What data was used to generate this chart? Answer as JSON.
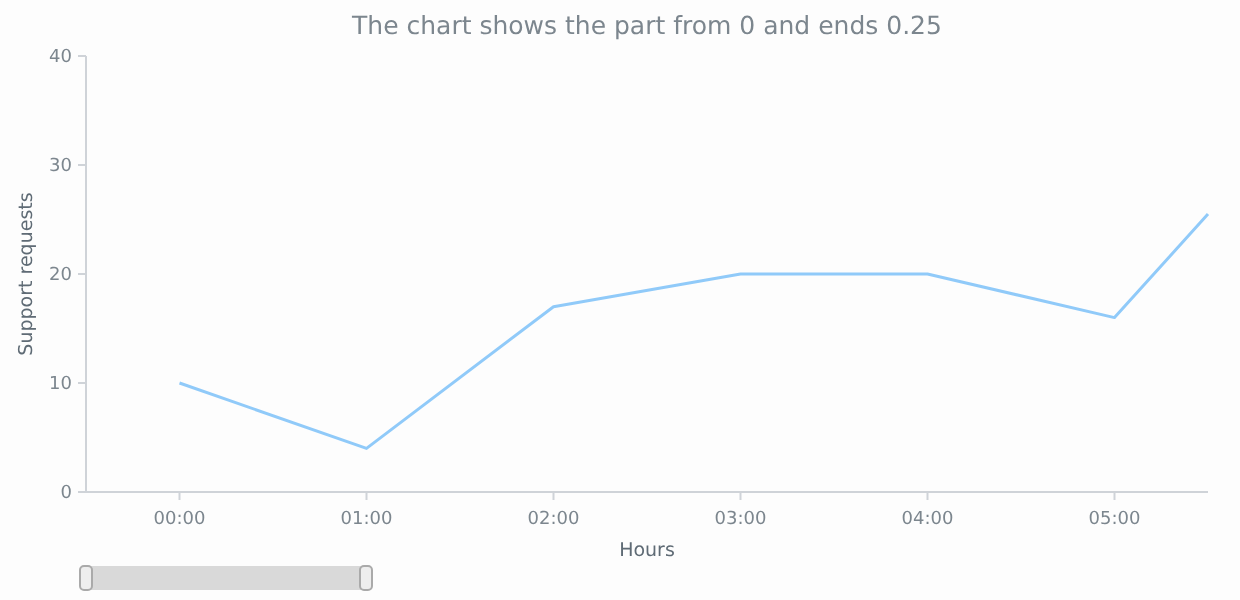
{
  "chart_data": {
    "type": "line",
    "title": "The chart shows the part from 0 and ends 0.25",
    "xlabel": "Hours",
    "ylabel": "Support requests",
    "x": [
      0,
      1,
      2,
      3,
      4,
      5,
      5.5
    ],
    "series": [
      {
        "color": "#90caf9",
        "values": [
          10,
          4,
          17,
          20,
          20,
          16,
          25.5
        ]
      }
    ],
    "xlim": [
      -0.5,
      5.5
    ],
    "xticks": [
      {
        "value": 0,
        "label": "00:00"
      },
      {
        "value": 1,
        "label": "01:00"
      },
      {
        "value": 2,
        "label": "02:00"
      },
      {
        "value": 3,
        "label": "03:00"
      },
      {
        "value": 4,
        "label": "04:00"
      },
      {
        "value": 5,
        "label": "05:00"
      }
    ],
    "ylim": [
      0,
      40
    ],
    "yticks": [
      0,
      10,
      20,
      30,
      40
    ],
    "grid": false,
    "marker": "none",
    "line_style": "solid"
  }
}
